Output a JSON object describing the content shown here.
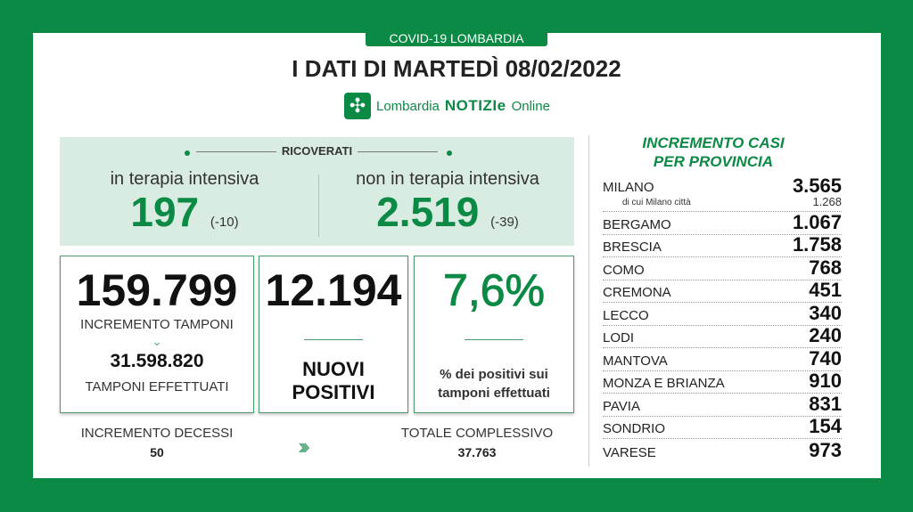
{
  "colors": {
    "brand": "#0b8a45",
    "panel": "#d9ece2"
  },
  "header": {
    "tag": "COVID-19 LOMBARDIA",
    "title": "I DATI DI MARTEDÌ 08/02/2022",
    "logo_pre": "Lombardia",
    "logo_bold": "NOTIZIe",
    "logo_post": "Online",
    "logo_icon": "lombardy-rose-icon"
  },
  "ricoverati": {
    "label": "RICOVERATI",
    "intensiva": {
      "label": "in terapia intensiva",
      "value": "197",
      "delta": "(-10)"
    },
    "non_intensiva": {
      "label": "non in terapia intensiva",
      "value": "2.519",
      "delta": "(-39)"
    }
  },
  "tamponi": {
    "value": "159.799",
    "label": "INCREMENTO TAMPONI",
    "total": "31.598.820",
    "total_label": "TAMPONI EFFETTUATI"
  },
  "positivi": {
    "value": "12.194",
    "label1": "NUOVI",
    "label2": "POSITIVI"
  },
  "percentuale": {
    "value": "7,6%",
    "label1": "% dei positivi sui",
    "label2": "tamponi effettuati"
  },
  "decessi": {
    "label": "INCREMENTO DECESSI",
    "value": "50",
    "total_label": "TOTALE COMPLESSIVO",
    "total": "37.763"
  },
  "province": {
    "title1": "INCREMENTO CASI",
    "title2": "PER PROVINCIA",
    "milano": {
      "name": "MILANO",
      "value": "3.565",
      "sub": "di cui Milano città",
      "sub_value": "1.268"
    },
    "items": [
      {
        "name": "BERGAMO",
        "value": "1.067"
      },
      {
        "name": "BRESCIA",
        "value": "1.758"
      },
      {
        "name": "COMO",
        "value": "768"
      },
      {
        "name": "CREMONA",
        "value": "451"
      },
      {
        "name": "LECCO",
        "value": "340"
      },
      {
        "name": "LODI",
        "value": "240"
      },
      {
        "name": "MANTOVA",
        "value": "740"
      },
      {
        "name": "MONZA E BRIANZA",
        "value": "910"
      },
      {
        "name": "PAVIA",
        "value": "831"
      },
      {
        "name": "SONDRIO",
        "value": "154"
      },
      {
        "name": "VARESE",
        "value": "973"
      }
    ]
  }
}
